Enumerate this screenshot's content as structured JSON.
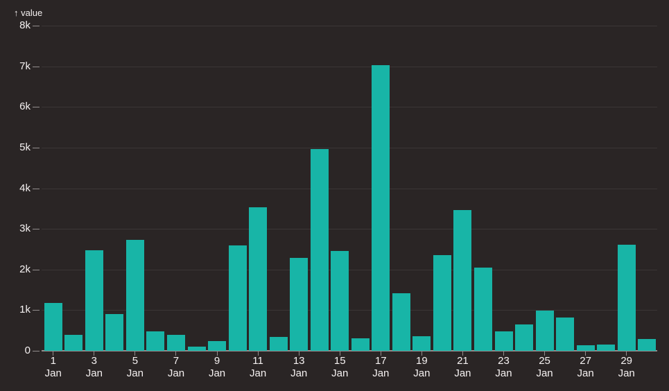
{
  "colors": {
    "background": "#2a2525",
    "bar": "#18b5a7",
    "gridline": "#3b3636",
    "axis": "#938e8e",
    "text": "#f5f1f1"
  },
  "chart_data": {
    "type": "bar",
    "title": "",
    "axis_label": "↑ value",
    "ylabel": "value",
    "xlabel": "",
    "month": "Jan",
    "days": [
      1,
      2,
      3,
      4,
      5,
      6,
      7,
      8,
      9,
      10,
      11,
      12,
      13,
      14,
      15,
      16,
      17,
      18,
      19,
      20,
      21,
      22,
      23,
      24,
      25,
      26,
      27,
      28,
      29,
      30
    ],
    "values": [
      1180,
      390,
      2470,
      900,
      2730,
      470,
      390,
      100,
      240,
      2600,
      3530,
      340,
      2280,
      4960,
      2460,
      310,
      7020,
      1410,
      350,
      2350,
      3470,
      2040,
      470,
      640,
      990,
      820,
      130,
      150,
      2610,
      290
    ],
    "labeled_days": [
      1,
      3,
      5,
      7,
      9,
      11,
      13,
      15,
      17,
      19,
      21,
      23,
      25,
      27,
      29
    ],
    "y_tick_labels": [
      "0",
      "1k",
      "2k",
      "3k",
      "4k",
      "5k",
      "6k",
      "7k",
      "8k"
    ],
    "ylim": [
      0,
      8000
    ],
    "grid": true,
    "legend": "none"
  }
}
